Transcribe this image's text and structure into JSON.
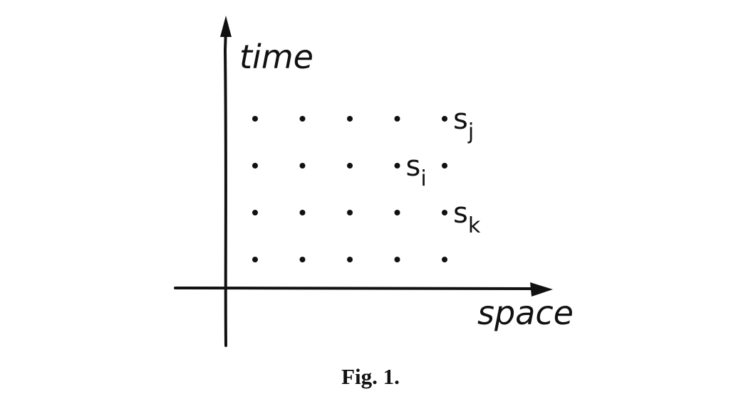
{
  "axes": {
    "y_label": "time",
    "x_label": "space"
  },
  "grid": {
    "rows": 4,
    "cols": 5
  },
  "points": [
    {
      "label": "s",
      "subscript": "j",
      "col": 5,
      "row": 4
    },
    {
      "label": "s",
      "subscript": "i",
      "col": 4,
      "row": 3
    },
    {
      "label": "s",
      "subscript": "k",
      "col": 5,
      "row": 2
    }
  ],
  "caption": "Fig. 1.",
  "colors": {
    "ink": "#111111",
    "background": "#ffffff"
  }
}
